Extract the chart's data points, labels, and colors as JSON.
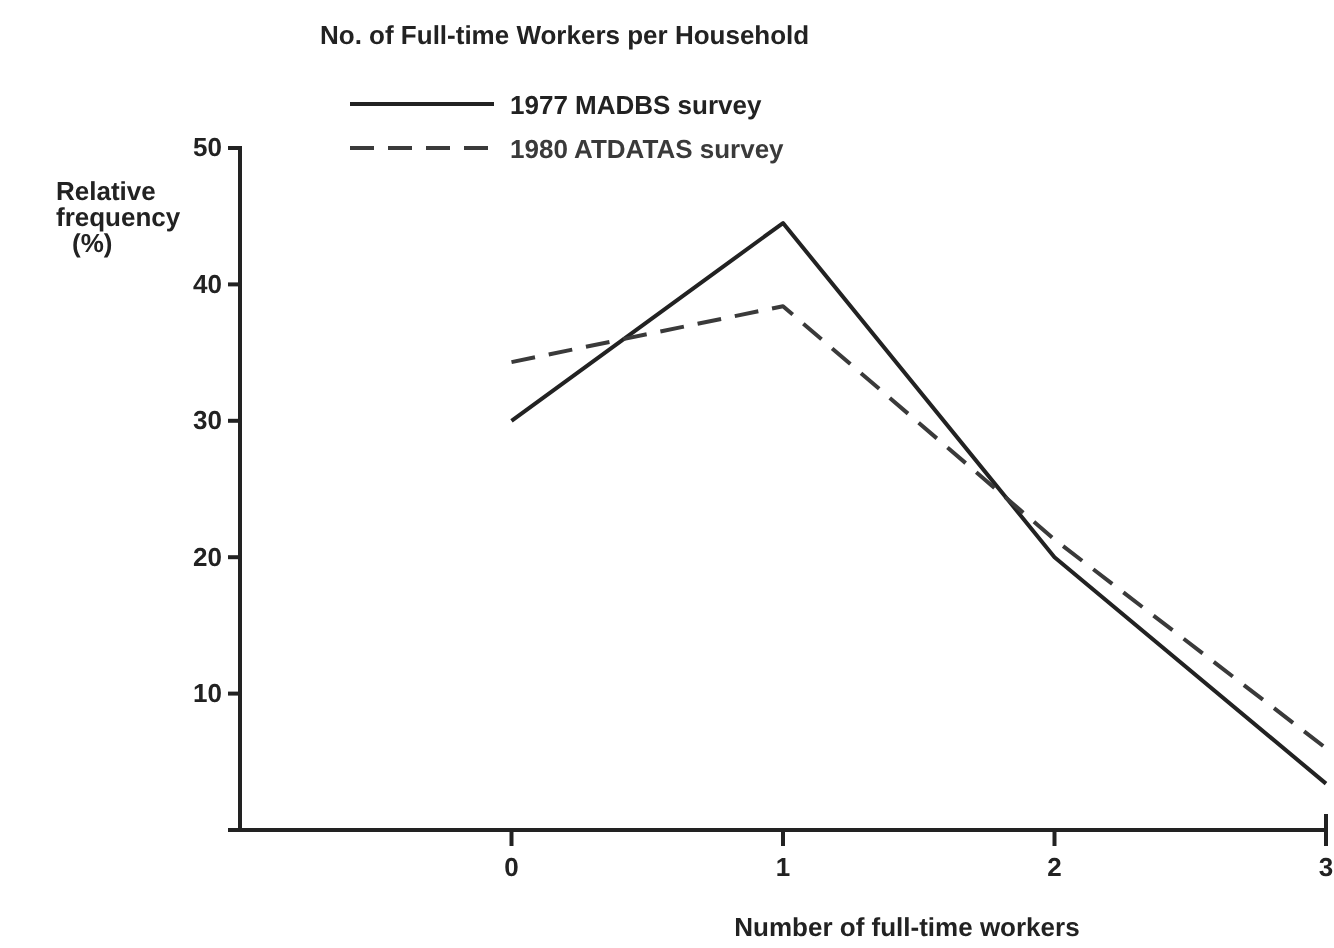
{
  "chart_data": {
    "type": "line",
    "title": "No. of Full-time Workers per Household",
    "xlabel": "Number of full-time workers",
    "ylabel": "Relative frequency (%)",
    "x": [
      0,
      1,
      2,
      3
    ],
    "xlim": [
      -1,
      3
    ],
    "xticks": [
      0,
      1,
      2,
      3
    ],
    "ylim": [
      0,
      50
    ],
    "yticks": [
      10,
      20,
      30,
      40,
      50
    ],
    "legend": "top",
    "grid": false,
    "marker": "none",
    "series": [
      {
        "name": "1977 MADBS survey",
        "color": "#222222",
        "line_style": "solid",
        "values": [
          30,
          44.5,
          20,
          3.4
        ]
      },
      {
        "name": "1980 ATDATAS survey",
        "color": "#3a3a3a",
        "line_style": "dashed",
        "values": [
          34.3,
          38.4,
          21.3,
          6
        ]
      }
    ]
  }
}
